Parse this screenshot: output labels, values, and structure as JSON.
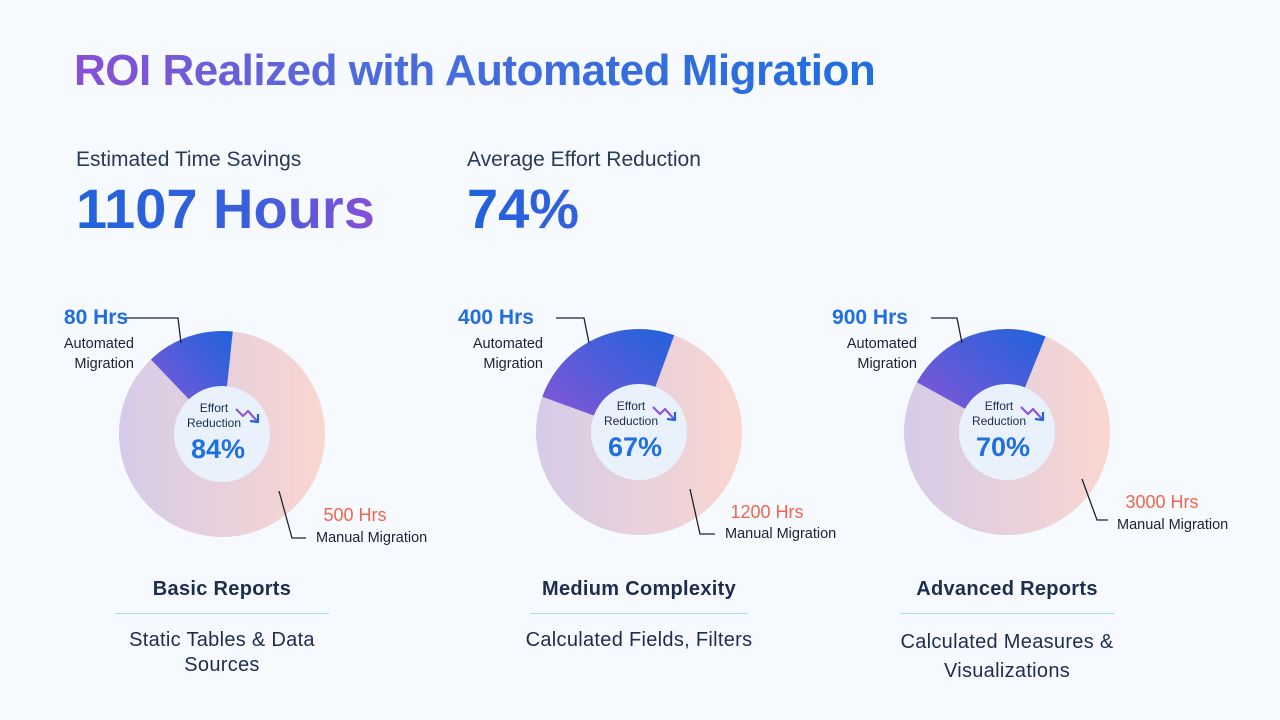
{
  "title": "ROI Realized with Automated Migration",
  "kpis": [
    {
      "label": "Estimated Time Savings",
      "value": "1107 Hours"
    },
    {
      "label": "Average Effort Reduction",
      "value": "74%"
    }
  ],
  "colors": {
    "automated_gradient": [
      "#8f55d6",
      "#1f63dc"
    ],
    "manual_gradient": [
      "#d5cbe8",
      "#fad6cf"
    ],
    "center": "#e9f1fd",
    "accent_blue": "#1f6fe0",
    "accent_orange": "#f0664f",
    "divider": "#a9ddd8"
  },
  "center_icon": "trend-down-icon",
  "chart_data": [
    {
      "type": "pie",
      "title": "Basic Reports",
      "subtitle": "Static Tables & Data Sources",
      "center_label": [
        "Effort",
        "Reduction"
      ],
      "center_value": "84%",
      "slices": [
        {
          "name": "Automated Migration",
          "value": 80,
          "label": "80 Hrs",
          "label_lines": [
            "Automated",
            "Migration"
          ]
        },
        {
          "name": "Manual Migration",
          "value": 500,
          "label": "500 Hrs",
          "label_lines": [
            "Manual Migration"
          ]
        }
      ]
    },
    {
      "type": "pie",
      "title": "Medium Complexity",
      "subtitle": "Calculated Fields, Filters",
      "center_label": [
        "Effort",
        "Reduction"
      ],
      "center_value": "67%",
      "slices": [
        {
          "name": "Automated Migration",
          "value": 400,
          "label": "400 Hrs",
          "label_lines": [
            "Automated",
            "Migration"
          ]
        },
        {
          "name": "Manual Migration",
          "value": 1200,
          "label": "1200 Hrs",
          "label_lines": [
            "Manual Migration"
          ]
        }
      ]
    },
    {
      "type": "pie",
      "title": "Advanced Reports",
      "subtitle": "Calculated Measures & Visualizations",
      "center_label": [
        "Effort",
        "Reduction"
      ],
      "center_value": "70%",
      "slices": [
        {
          "name": "Automated Migration",
          "value": 900,
          "label": "900 Hrs",
          "label_lines": [
            "Automated",
            "Migration"
          ]
        },
        {
          "name": "Manual Migration",
          "value": 3000,
          "label": "3000 Hrs",
          "label_lines": [
            "Manual Migration"
          ]
        }
      ]
    }
  ]
}
